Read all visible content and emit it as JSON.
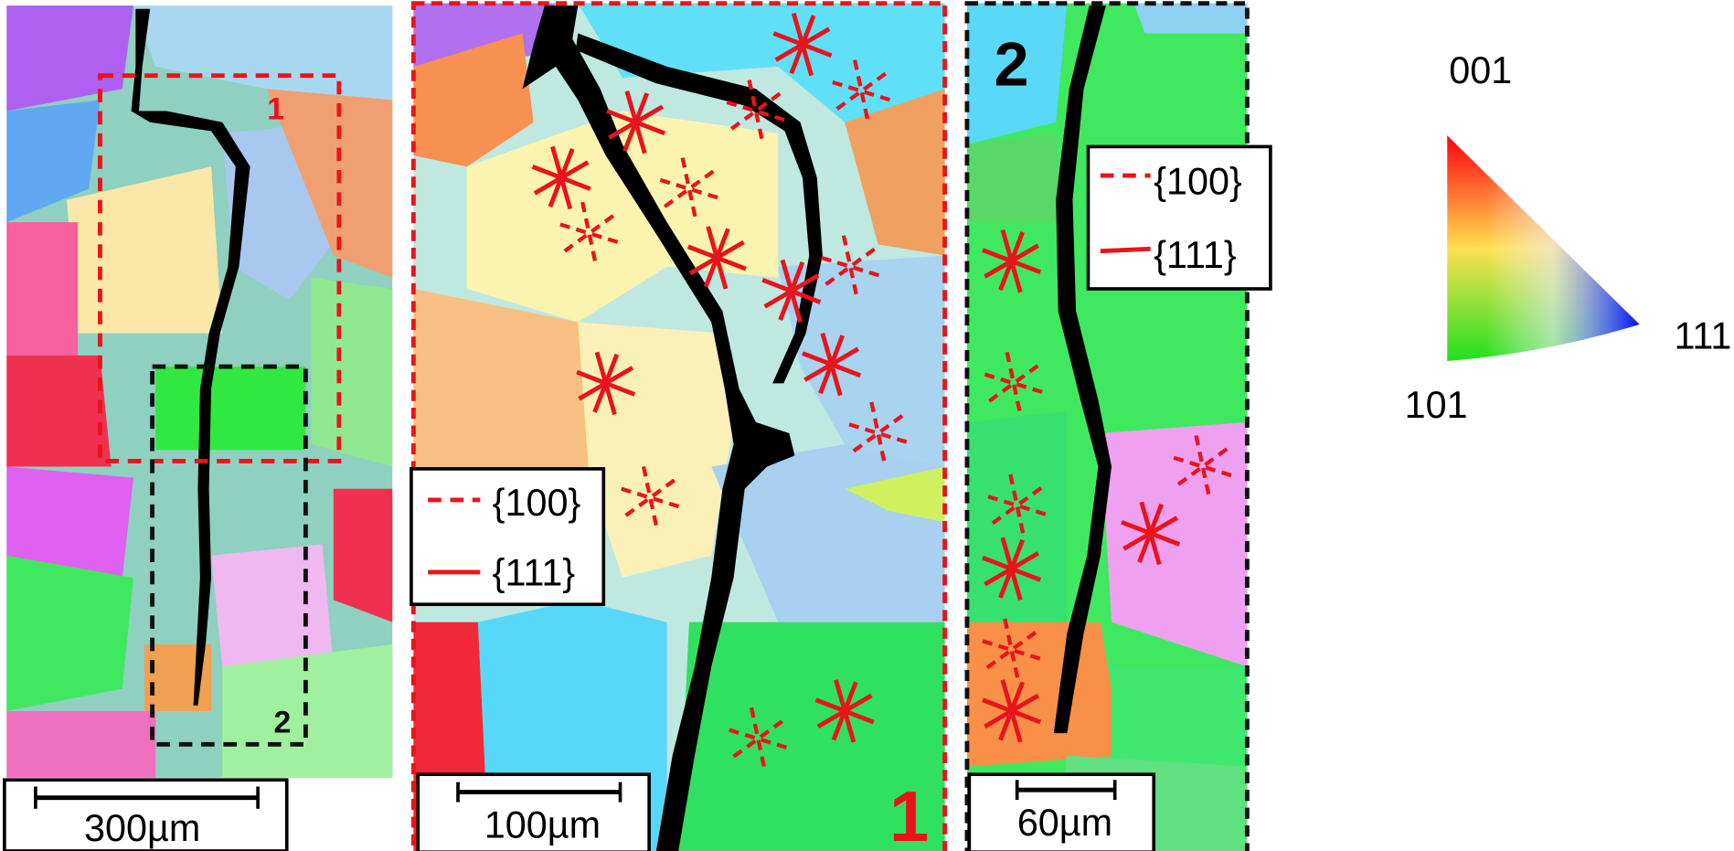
{
  "overview": {
    "box_labels": [
      "1",
      "2"
    ],
    "scale_bar": "300µm"
  },
  "zoom_1": {
    "label": "1",
    "legend": [
      "{100}",
      "{111}"
    ],
    "scale_bar": "100µm"
  },
  "zoom_2": {
    "label": "2",
    "legend": [
      "{100}",
      "{111}"
    ],
    "scale_bar": "60µm"
  },
  "color_key": {
    "corners": [
      "001",
      "101",
      "111"
    ]
  }
}
